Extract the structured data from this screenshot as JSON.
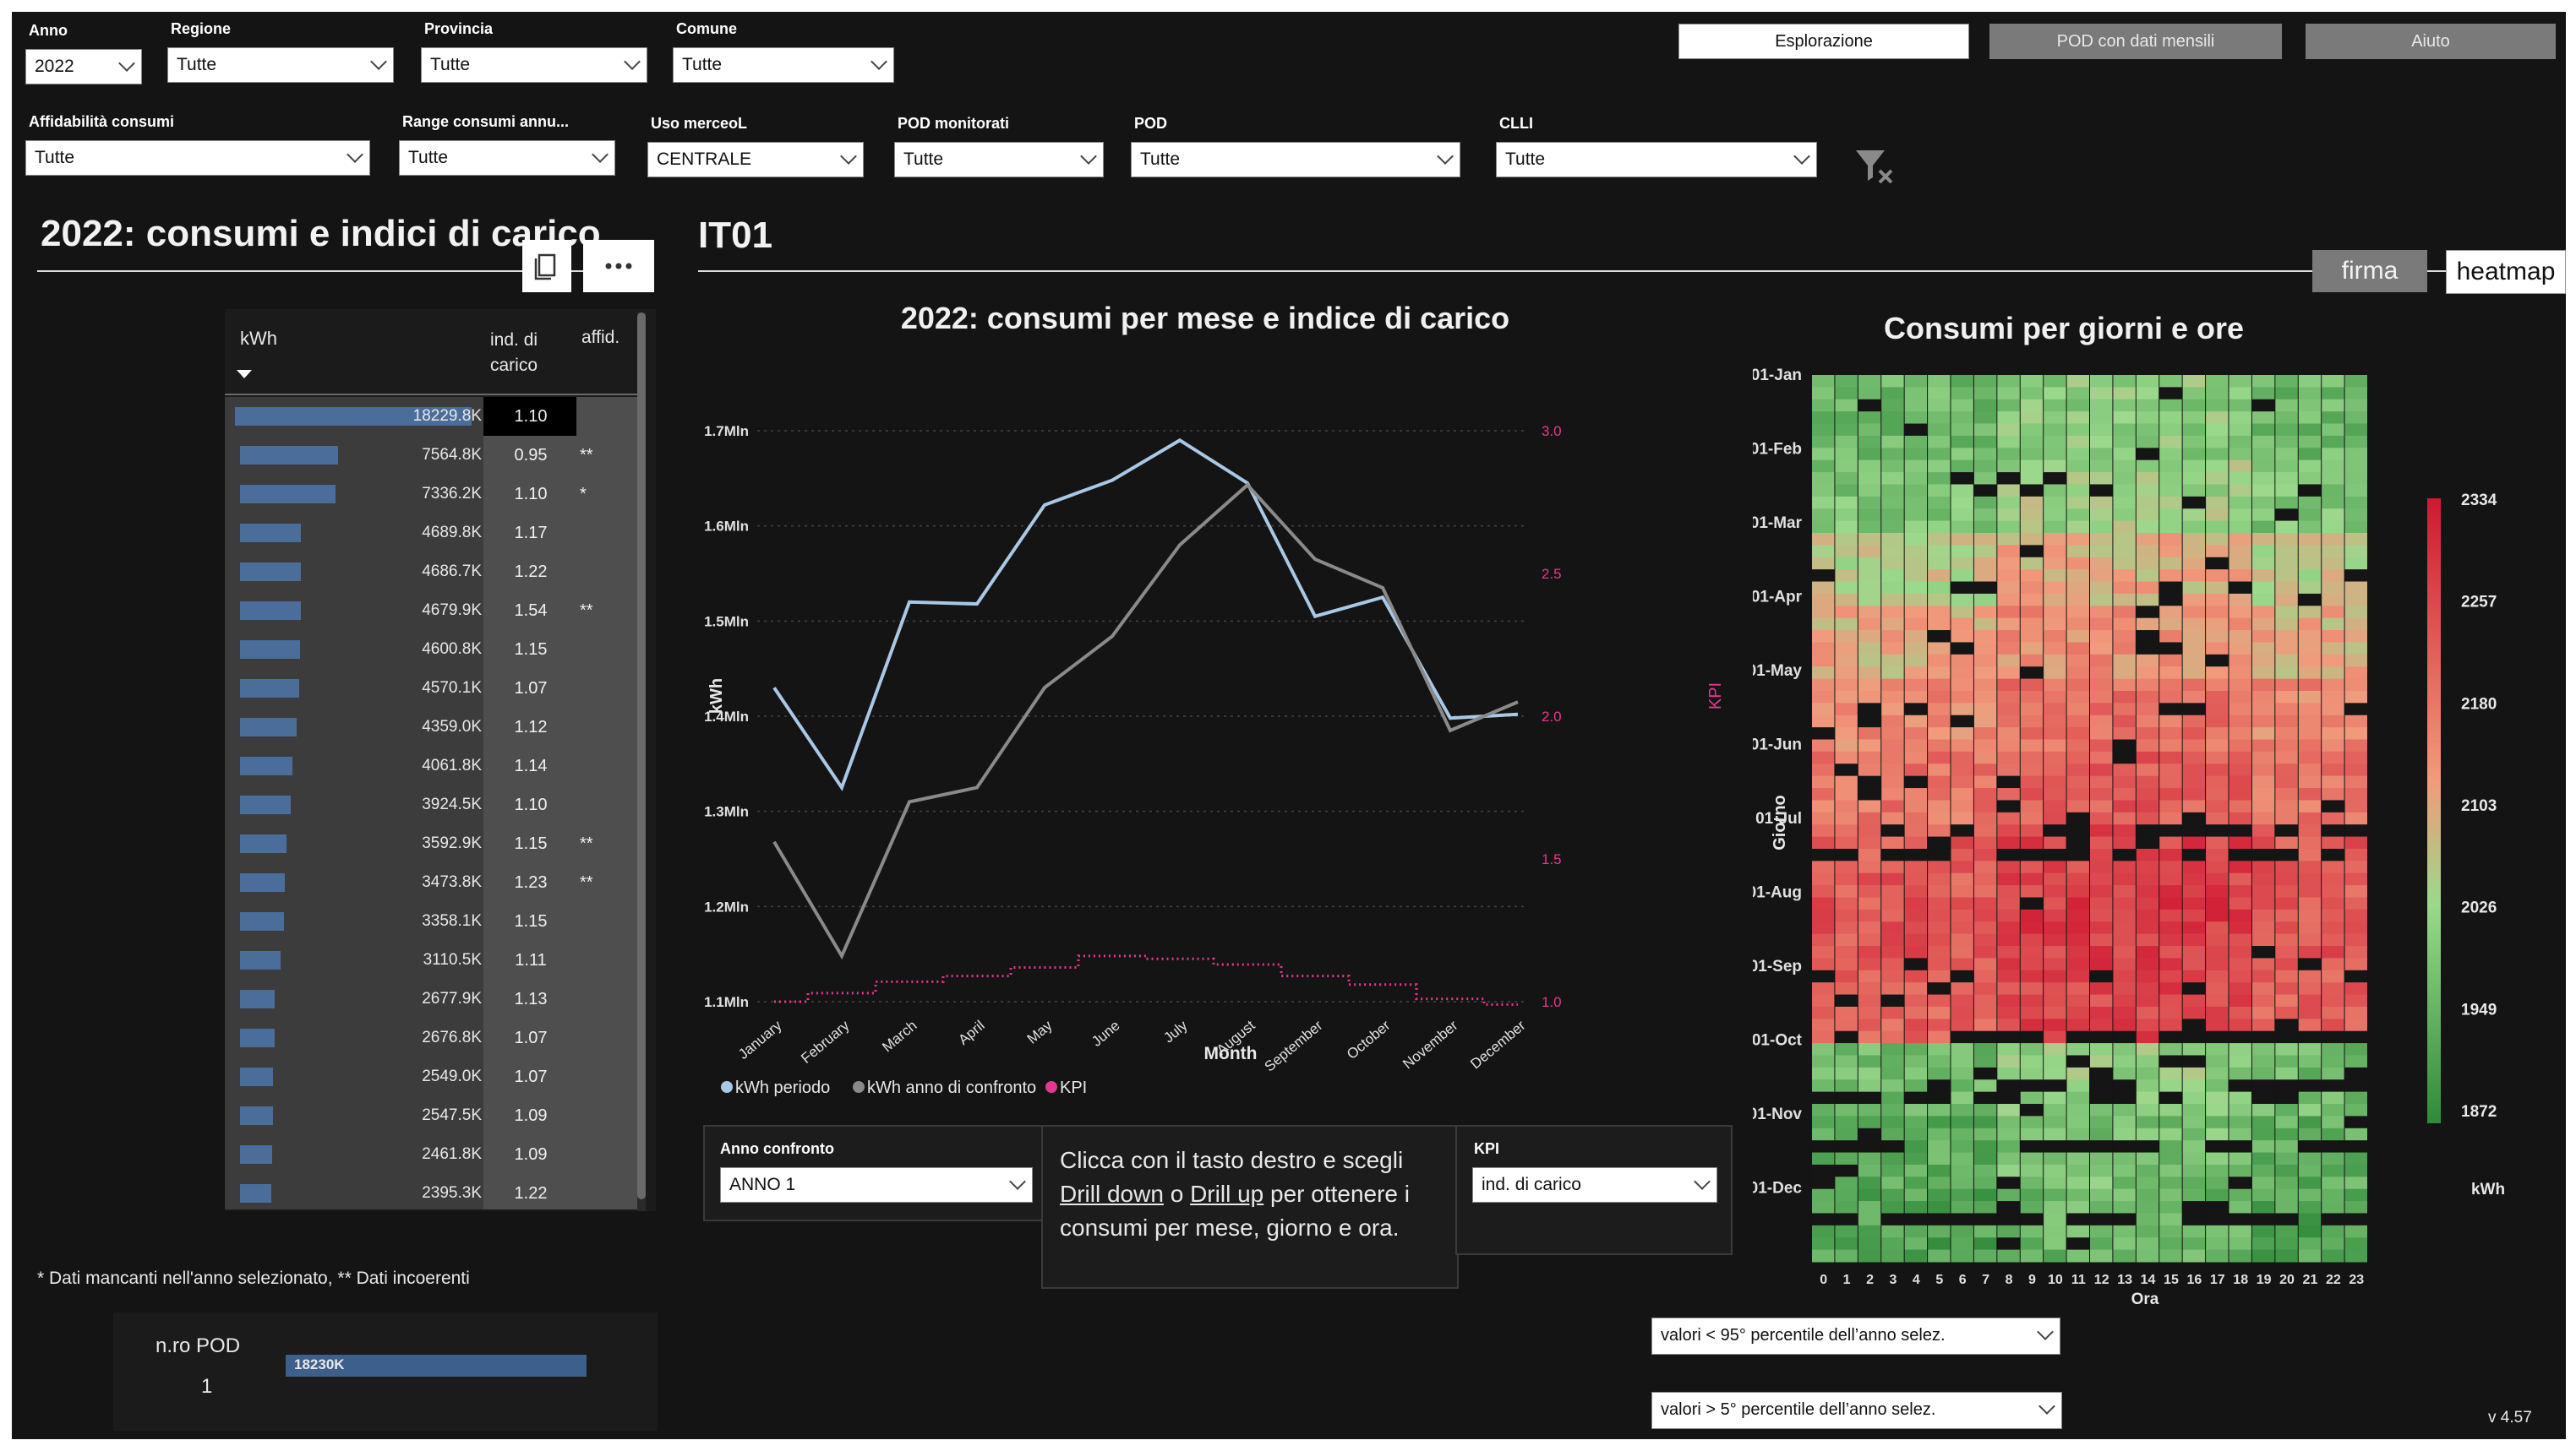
{
  "filters": {
    "anno": {
      "label": "Anno",
      "value": "2022"
    },
    "regione": {
      "label": "Regione",
      "value": "Tutte"
    },
    "provincia": {
      "label": "Provincia",
      "value": "Tutte"
    },
    "comune": {
      "label": "Comune",
      "value": "Tutte"
    },
    "affidabilita": {
      "label": "Affidabilità consumi",
      "value": "Tutte"
    },
    "range": {
      "label": "Range consumi annu...",
      "value": "Tutte"
    },
    "uso": {
      "label": "Uso merceoL",
      "value": "CENTRALE"
    },
    "pod_monitorati": {
      "label": "POD monitorati",
      "value": "Tutte"
    },
    "pod": {
      "label": "POD",
      "value": "Tutte"
    },
    "clli": {
      "label": "CLLI",
      "value": "Tutte"
    }
  },
  "nav": {
    "esplorazione": "Esplorazione",
    "pod_mensili": "POD con dati mensili",
    "aiuto": "Aiuto"
  },
  "icons": {
    "clear_filter": "filter-clear-icon",
    "copy": "copy-icon",
    "more": "more-options-icon"
  },
  "left": {
    "title": "2022: consumi e indici di carico",
    "col_kwh": "kWh",
    "col_ind": "ind. di carico",
    "col_aff": "affid.",
    "rows": [
      {
        "kwh": "18229.8K",
        "value": 18229.8,
        "ind": "1.10",
        "aff": ""
      },
      {
        "kwh": "7564.8K",
        "value": 7564.8,
        "ind": "0.95",
        "aff": "**"
      },
      {
        "kwh": "7336.2K",
        "value": 7336.2,
        "ind": "1.10",
        "aff": "*"
      },
      {
        "kwh": "4689.8K",
        "value": 4689.8,
        "ind": "1.17",
        "aff": ""
      },
      {
        "kwh": "4686.7K",
        "value": 4686.7,
        "ind": "1.22",
        "aff": ""
      },
      {
        "kwh": "4679.9K",
        "value": 4679.9,
        "ind": "1.54",
        "aff": "**"
      },
      {
        "kwh": "4600.8K",
        "value": 4600.8,
        "ind": "1.15",
        "aff": ""
      },
      {
        "kwh": "4570.1K",
        "value": 4570.1,
        "ind": "1.07",
        "aff": ""
      },
      {
        "kwh": "4359.0K",
        "value": 4359.0,
        "ind": "1.12",
        "aff": ""
      },
      {
        "kwh": "4061.8K",
        "value": 4061.8,
        "ind": "1.14",
        "aff": ""
      },
      {
        "kwh": "3924.5K",
        "value": 3924.5,
        "ind": "1.10",
        "aff": ""
      },
      {
        "kwh": "3592.9K",
        "value": 3592.9,
        "ind": "1.15",
        "aff": "**"
      },
      {
        "kwh": "3473.8K",
        "value": 3473.8,
        "ind": "1.23",
        "aff": "**"
      },
      {
        "kwh": "3358.1K",
        "value": 3358.1,
        "ind": "1.15",
        "aff": ""
      },
      {
        "kwh": "3110.5K",
        "value": 3110.5,
        "ind": "1.11",
        "aff": ""
      },
      {
        "kwh": "2677.9K",
        "value": 2677.9,
        "ind": "1.13",
        "aff": ""
      },
      {
        "kwh": "2676.8K",
        "value": 2676.8,
        "ind": "1.07",
        "aff": ""
      },
      {
        "kwh": "2549.0K",
        "value": 2549.0,
        "ind": "1.07",
        "aff": ""
      },
      {
        "kwh": "2547.5K",
        "value": 2547.5,
        "ind": "1.09",
        "aff": ""
      },
      {
        "kwh": "2461.8K",
        "value": 2461.8,
        "ind": "1.09",
        "aff": ""
      },
      {
        "kwh": "2395.3K",
        "value": 2395.3,
        "ind": "1.22",
        "aff": ""
      }
    ],
    "footnote": "* Dati mancanti nell'anno selezionato,  ** Dati incoerenti",
    "npod_label": "n.ro POD",
    "npod_value": "1",
    "npod_bar_label": "18230K",
    "npod_bar_value": 18230
  },
  "region_title": "IT01",
  "toggle": {
    "firma": "firma",
    "heatmap": "heatmap"
  },
  "line_chart": {
    "ylabel": "kWh",
    "y2label": "KPI",
    "xlabel": "Month",
    "legend": [
      "kWh periodo",
      "kWh anno di confronto",
      "KPI"
    ]
  },
  "controls": {
    "anno_confronto": {
      "label": "Anno confronto",
      "value": "ANNO 1"
    },
    "help_text": [
      "Clicca con il tasto destro e scegli",
      "Drill down",
      "Drill up",
      "per ottenere i",
      "consumi per mese, giorno e ora."
    ],
    "help_connector": "o",
    "kpi": {
      "label": "KPI",
      "value": "ind. di carico"
    }
  },
  "heatmap": {
    "title": "Consumi per giorni e ore",
    "ylabel": "Giorno",
    "xlabel": "Ora",
    "rows": [
      "01-Jan",
      "01-Feb",
      "01-Mar",
      "01-Apr",
      "01-May",
      "01-Jun",
      "01-Jul",
      "01-Aug",
      "01-Sep",
      "01-Oct",
      "01-Nov",
      "01-Dec"
    ],
    "hours": [
      "0",
      "1",
      "2",
      "3",
      "4",
      "5",
      "6",
      "7",
      "8",
      "9",
      "10",
      "11",
      "12",
      "13",
      "14",
      "15",
      "16",
      "17",
      "18",
      "19",
      "20",
      "21",
      "22",
      "23"
    ],
    "scale": [
      "2334",
      "2257",
      "2180",
      "2103",
      "2026",
      "1949",
      "1872"
    ],
    "scale_unit": "kWh"
  },
  "percentile_filters": {
    "p95": "valori < 95° percentile dell’anno selez.",
    "p5": "valori > 5° percentile dell’anno selez."
  },
  "version": "v 4.57",
  "chart_data": [
    {
      "type": "line",
      "title": "2022: consumi per mese e indice di carico",
      "xlabel": "Month",
      "ylabel": "kWh",
      "y2label": "KPI",
      "categories": [
        "January",
        "February",
        "March",
        "April",
        "May",
        "June",
        "July",
        "August",
        "September",
        "October",
        "November",
        "December"
      ],
      "ylim": [
        1100000,
        1700000
      ],
      "yticks": [
        "1.1Mln",
        "1.2Mln",
        "1.3Mln",
        "1.4Mln",
        "1.5Mln",
        "1.6Mln",
        "1.7Mln"
      ],
      "y2lim": [
        1.0,
        3.0
      ],
      "y2ticks": [
        "1.0",
        "1.5",
        "2.0",
        "2.5",
        "3.0"
      ],
      "colors": {
        "kWh periodo": "#a9c8e4",
        "kWh anno di confronto": "#8a8a8a",
        "KPI": "#e6378f"
      },
      "series": [
        {
          "name": "kWh periodo",
          "axis": "y",
          "values": [
            1430000,
            1325000,
            1520000,
            1518000,
            1622000,
            1648000,
            1690000,
            1645000,
            1505000,
            1525000,
            1398000,
            1402000
          ]
        },
        {
          "name": "kWh anno di confronto",
          "axis": "y",
          "values": [
            1268000,
            1148000,
            1310000,
            1325000,
            1430000,
            1484000,
            1580000,
            1643000,
            1565000,
            1535000,
            1385000,
            1415000
          ]
        },
        {
          "name": "KPI",
          "axis": "y2",
          "values": [
            1.0,
            1.03,
            1.07,
            1.09,
            1.12,
            1.16,
            1.15,
            1.13,
            1.09,
            1.06,
            1.01,
            0.99
          ]
        }
      ],
      "legend": "bottom-left"
    },
    {
      "type": "heatmap",
      "title": "Consumi per giorni e ore",
      "xlabel": "Ora",
      "ylabel": "Giorno",
      "x": [
        "0",
        "1",
        "2",
        "3",
        "4",
        "5",
        "6",
        "7",
        "8",
        "9",
        "10",
        "11",
        "12",
        "13",
        "14",
        "15",
        "16",
        "17",
        "18",
        "19",
        "20",
        "21",
        "22",
        "23"
      ],
      "y": [
        "01-Jan",
        "01-Feb",
        "01-Mar",
        "01-Apr",
        "01-May",
        "01-Jun",
        "01-Jul",
        "01-Aug",
        "01-Sep",
        "01-Oct",
        "01-Nov",
        "01-Dec"
      ],
      "colorscale": {
        "min": 1872,
        "max": 2334,
        "low_color": "#2f8a3a",
        "high_color": "#d01b35"
      },
      "monthly_level": [
        1985,
        2010,
        2080,
        2120,
        2170,
        2200,
        2240,
        2250,
        2230,
        1990,
        1960,
        1940
      ]
    }
  ]
}
